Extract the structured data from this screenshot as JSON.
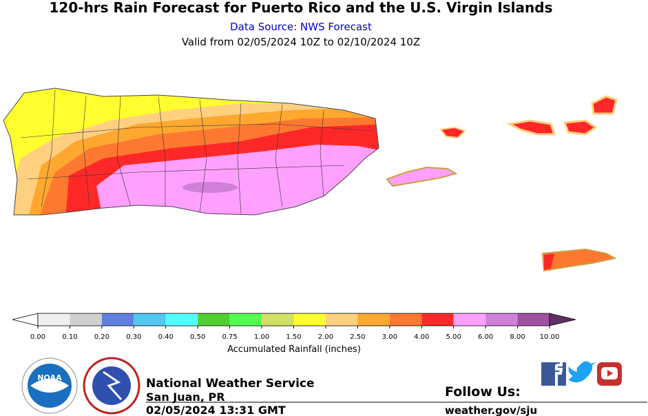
{
  "header": {
    "title": "120-hrs Rain Forecast for Puerto Rico and the U.S. Virgin Islands",
    "source": "Data Source: NWS Forecast",
    "valid": "Valid from 02/05/2024 10Z to 02/10/2024 10Z"
  },
  "colorbar": {
    "label": "Accumulated Rainfall (inches)",
    "ticks": [
      {
        "value": 0,
        "label": "0.00"
      },
      {
        "value": 0.1,
        "label": "0.10"
      },
      {
        "value": 0.2,
        "label": "0.20"
      },
      {
        "value": 0.3,
        "label": "0.30"
      },
      {
        "value": 0.4,
        "label": "0.40"
      },
      {
        "value": 0.5,
        "label": "0.50"
      },
      {
        "value": 0.75,
        "label": "0.75"
      },
      {
        "value": 1,
        "label": "1.00"
      },
      {
        "value": 1.5,
        "label": "1.50"
      },
      {
        "value": 2,
        "label": "2.00"
      },
      {
        "value": 2.5,
        "label": "2.50"
      },
      {
        "value": 3,
        "label": "3.00"
      },
      {
        "value": 4,
        "label": "4.00"
      },
      {
        "value": 5,
        "label": "5.00"
      },
      {
        "value": 6,
        "label": "6.00"
      },
      {
        "value": 8,
        "label": "8.00"
      },
      {
        "value": 10,
        "label": "10.00"
      }
    ],
    "colors": [
      "#f0f0f0",
      "#d0d0d0",
      "#6080e0",
      "#50c8f0",
      "#50ffff",
      "#50d030",
      "#50ff50",
      "#d0e060",
      "#ffff30",
      "#ffd080",
      "#ffa830",
      "#ff7830",
      "#ff2828",
      "#ffa0ff",
      "#d080d8",
      "#a050a0"
    ],
    "under_color": "#ffffff",
    "over_color": "#603060"
  },
  "footer": {
    "logo": "NOAA",
    "agency": "National Weather Service",
    "office": "San Juan, PR",
    "issued": "02/05/2024 13:31 GMT",
    "follow": "Follow Us:",
    "website": "weather.gov/sju"
  }
}
